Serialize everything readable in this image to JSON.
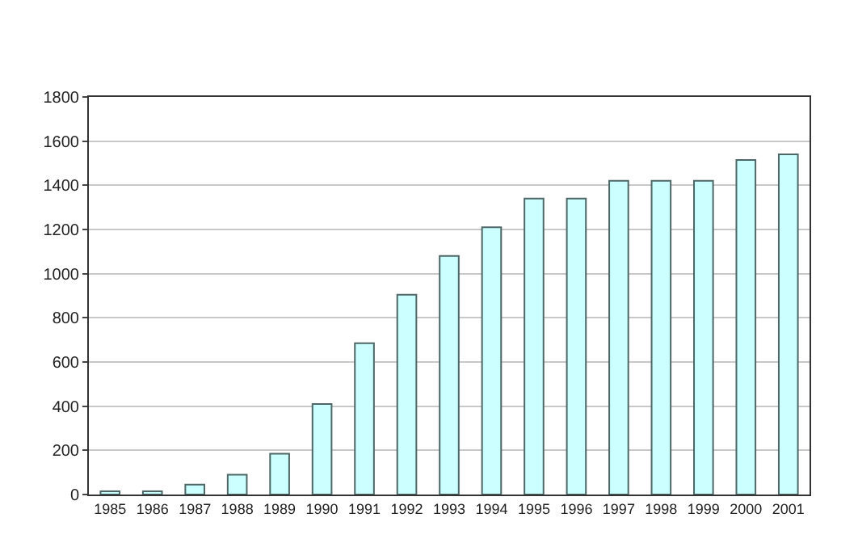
{
  "chart_data": {
    "type": "bar",
    "categories": [
      "1985",
      "1986",
      "1987",
      "1988",
      "1989",
      "1990",
      "1991",
      "1992",
      "1993",
      "1994",
      "1995",
      "1996",
      "1997",
      "1998",
      "1999",
      "2000",
      "2001"
    ],
    "values": [
      15,
      15,
      45,
      90,
      185,
      410,
      685,
      905,
      1080,
      1210,
      1340,
      1340,
      1420,
      1420,
      1420,
      1515,
      1540
    ],
    "color": "#ccffff",
    "ylim": [
      0,
      1800
    ],
    "yticks": [
      0,
      200,
      400,
      600,
      800,
      1000,
      1200,
      1400,
      1600,
      1800
    ],
    "grid": "y"
  }
}
